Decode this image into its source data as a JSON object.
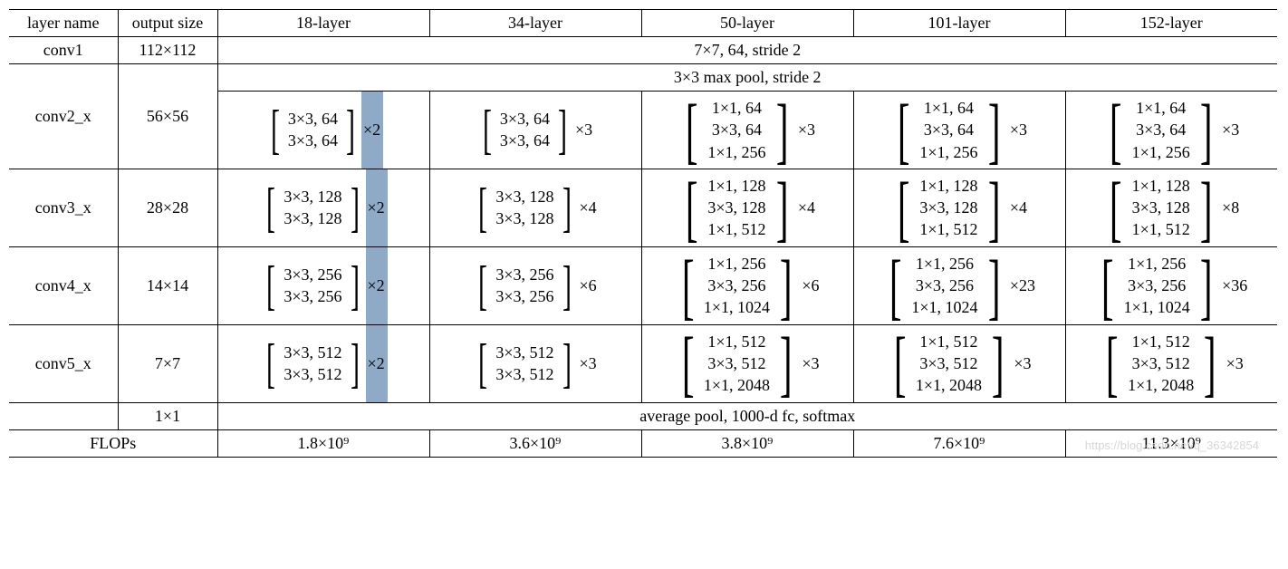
{
  "headers": {
    "layer": "layer name",
    "output": "output size",
    "a18": "18-layer",
    "a34": "34-layer",
    "a50": "50-layer",
    "a101": "101-layer",
    "a152": "152-layer"
  },
  "conv1": {
    "name": "conv1",
    "size": "112×112",
    "desc": "7×7, 64, stride 2"
  },
  "pool": "3×3 max pool, stride 2",
  "conv2": {
    "name": "conv2_x",
    "size": "56×56",
    "a18": {
      "lines": [
        "3×3, 64",
        "3×3, 64"
      ],
      "mult": "×2"
    },
    "a34": {
      "lines": [
        "3×3, 64",
        "3×3, 64"
      ],
      "mult": "×3"
    },
    "a50": {
      "lines": [
        "1×1, 64",
        "3×3, 64",
        "1×1, 256"
      ],
      "mult": "×3"
    },
    "a101": {
      "lines": [
        "1×1, 64",
        "3×3, 64",
        "1×1, 256"
      ],
      "mult": "×3"
    },
    "a152": {
      "lines": [
        "1×1, 64",
        "3×3, 64",
        "1×1, 256"
      ],
      "mult": "×3"
    }
  },
  "conv3": {
    "name": "conv3_x",
    "size": "28×28",
    "a18": {
      "lines": [
        "3×3, 128",
        "3×3, 128"
      ],
      "mult": "×2"
    },
    "a34": {
      "lines": [
        "3×3, 128",
        "3×3, 128"
      ],
      "mult": "×4"
    },
    "a50": {
      "lines": [
        "1×1, 128",
        "3×3, 128",
        "1×1, 512"
      ],
      "mult": "×4"
    },
    "a101": {
      "lines": [
        "1×1, 128",
        "3×3, 128",
        "1×1, 512"
      ],
      "mult": "×4"
    },
    "a152": {
      "lines": [
        "1×1, 128",
        "3×3, 128",
        "1×1, 512"
      ],
      "mult": "×8"
    }
  },
  "conv4": {
    "name": "conv4_x",
    "size": "14×14",
    "a18": {
      "lines": [
        "3×3, 256",
        "3×3, 256"
      ],
      "mult": "×2"
    },
    "a34": {
      "lines": [
        "3×3, 256",
        "3×3, 256"
      ],
      "mult": "×6"
    },
    "a50": {
      "lines": [
        "1×1, 256",
        "3×3, 256",
        "1×1, 1024"
      ],
      "mult": "×6"
    },
    "a101": {
      "lines": [
        "1×1, 256",
        "3×3, 256",
        "1×1, 1024"
      ],
      "mult": "×23"
    },
    "a152": {
      "lines": [
        "1×1, 256",
        "3×3, 256",
        "1×1, 1024"
      ],
      "mult": "×36"
    }
  },
  "conv5": {
    "name": "conv5_x",
    "size": "7×7",
    "a18": {
      "lines": [
        "3×3, 512",
        "3×3, 512"
      ],
      "mult": "×2"
    },
    "a34": {
      "lines": [
        "3×3, 512",
        "3×3, 512"
      ],
      "mult": "×3"
    },
    "a50": {
      "lines": [
        "1×1, 512",
        "3×3, 512",
        "1×1, 2048"
      ],
      "mult": "×3"
    },
    "a101": {
      "lines": [
        "1×1, 512",
        "3×3, 512",
        "1×1, 2048"
      ],
      "mult": "×3"
    },
    "a152": {
      "lines": [
        "1×1, 512",
        "3×3, 512",
        "1×1, 2048"
      ],
      "mult": "×3"
    }
  },
  "avgpool": {
    "size": "1×1",
    "desc": "average pool, 1000-d fc, softmax"
  },
  "flops": {
    "label": "FLOPs",
    "a18": "1.8×10⁹",
    "a34": "3.6×10⁹",
    "a50": "3.8×10⁹",
    "a101": "7.6×10⁹",
    "a152": "11.3×10⁹"
  },
  "highlight_color": "#7a9bbd",
  "watermark": "https://blog.csdn.net/q_36342854"
}
